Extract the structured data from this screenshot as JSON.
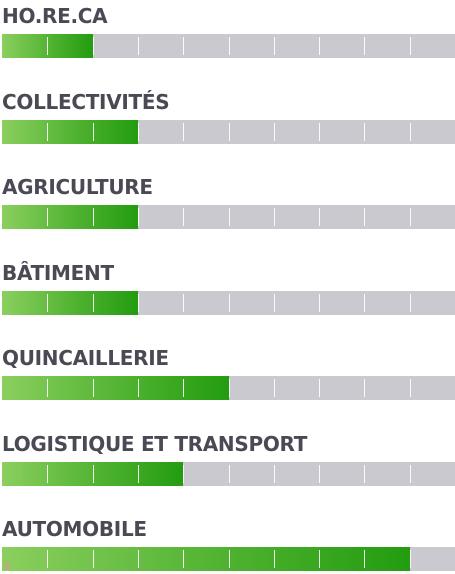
{
  "chart_data": {
    "type": "bar",
    "orientation": "horizontal",
    "scale_max": 10,
    "categories": [
      "HO.RE.CA",
      "COLLECTIVITÉS",
      "AGRICULTURE",
      "BÂTIMENT",
      "QUINCAILLERIE",
      "LOGISTIQUE ET TRANSPORT",
      "AUTOMOBILE"
    ],
    "values": [
      2,
      3,
      3,
      3,
      5,
      4,
      9
    ],
    "colors": {
      "fill_start": "#8bcf5f",
      "fill_end": "#239c10",
      "track": "#c9c9cf",
      "label": "#4a4a55"
    }
  }
}
